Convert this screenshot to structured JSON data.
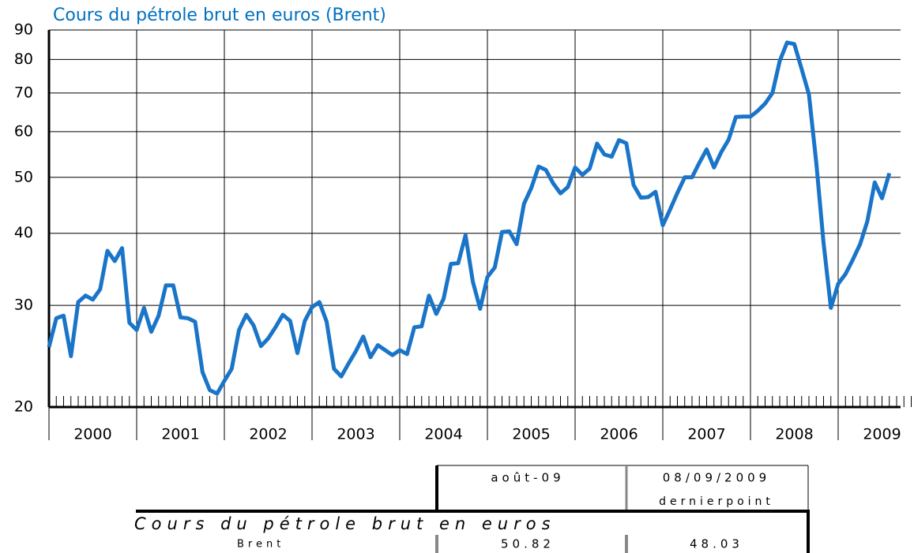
{
  "chart_data": {
    "type": "line",
    "title": "Cours du pétrole brut en euros (Brent)",
    "years": [
      "2000",
      "2001",
      "2002",
      "2003",
      "2004",
      "2005",
      "2006",
      "2007",
      "2008",
      "2009"
    ],
    "points_per_year": 12,
    "series": [
      {
        "name": "Brent",
        "color": "#1a75c8",
        "values": [
          25.4,
          28.5,
          28.8,
          24.5,
          30.4,
          31.2,
          30.7,
          32,
          37.3,
          35.8,
          37.7,
          28,
          27.2,
          29.7,
          27,
          28.8,
          32.5,
          32.5,
          28.6,
          28.5,
          28.1,
          23,
          21.4,
          21.1,
          22.2,
          23.3,
          27.2,
          28.9,
          27.7,
          25.5,
          26.3,
          27.5,
          28.9,
          28.2,
          24.8,
          28.2,
          29.8,
          30.4,
          28.1,
          23.3,
          22.6,
          23.8,
          25,
          26.5,
          24.4,
          25.6,
          25.1,
          24.6,
          25.1,
          24.7,
          27.5,
          27.6,
          31.2,
          29,
          30.8,
          35.4,
          35.5,
          39.7,
          33,
          29.6,
          33.6,
          34.9,
          40.2,
          40.3,
          38.3,
          45,
          47.9,
          52.2,
          51.5,
          48.8,
          46.9,
          48.1,
          52,
          50.5,
          51.8,
          57.2,
          54.8,
          54.3,
          58,
          57.3,
          48.5,
          46.1,
          46.2,
          47.2,
          41.3,
          44,
          47,
          50,
          50,
          53,
          55.9,
          52,
          55.3,
          58.1,
          63.6,
          63.7,
          63.7,
          65.2,
          67.1,
          70,
          79.5,
          85.6,
          85.1,
          77,
          69.6,
          53,
          38.5,
          29.7,
          32.7,
          34,
          36,
          38.3,
          42,
          49,
          46,
          50.82
        ]
      }
    ],
    "ylim": [
      20,
      90
    ],
    "yticks": [
      20,
      30,
      40,
      50,
      60,
      70,
      80,
      90
    ],
    "yscale": "log",
    "grid": true
  },
  "table": {
    "headers": [
      "août-09",
      "08/09/2009",
      "dernierpoint"
    ],
    "row_title": "Cours du pétrole brut en euros",
    "rows": [
      [
        "Brent",
        "50.82",
        "48.03"
      ]
    ]
  }
}
